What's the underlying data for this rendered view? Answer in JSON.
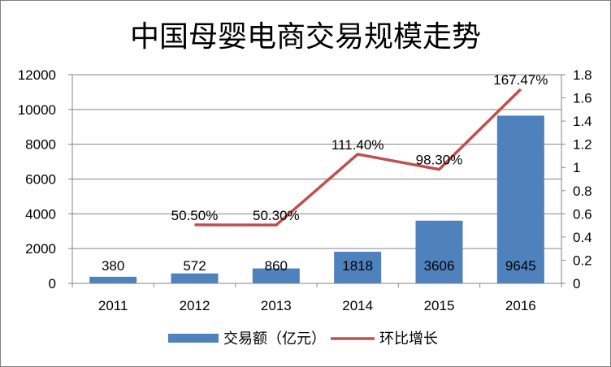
{
  "chart_data": {
    "type": "bar",
    "title": "中国母婴电商交易规模走势",
    "categories": [
      "2011",
      "2012",
      "2013",
      "2014",
      "2015",
      "2016"
    ],
    "series": [
      {
        "name": "交易额（亿元）",
        "type": "bar",
        "axis": "left",
        "color": "#4f81bd",
        "values": [
          380,
          572,
          860,
          1818,
          3606,
          9645
        ],
        "labels": [
          "380",
          "572",
          "860",
          "1818",
          "3606",
          "9645"
        ]
      },
      {
        "name": "环比增长",
        "type": "line",
        "axis": "right",
        "color": "#c0504d",
        "values": [
          null,
          0.505,
          0.503,
          1.114,
          0.983,
          1.6747
        ],
        "labels": [
          "",
          "50.50%",
          "50.30%",
          "111.40%",
          "98.30%",
          "167.47%"
        ]
      }
    ],
    "y_left": {
      "min": 0,
      "max": 12000,
      "ticks": [
        "0",
        "2000",
        "4000",
        "6000",
        "8000",
        "10000",
        "12000"
      ]
    },
    "y_right": {
      "min": 0,
      "max": 1.8,
      "ticks": [
        "0",
        "0.2",
        "0.4",
        "0.6",
        "0.8",
        "1",
        "1.2",
        "1.4",
        "1.6",
        "1.8"
      ]
    },
    "grid": true,
    "legend_position": "bottom"
  }
}
